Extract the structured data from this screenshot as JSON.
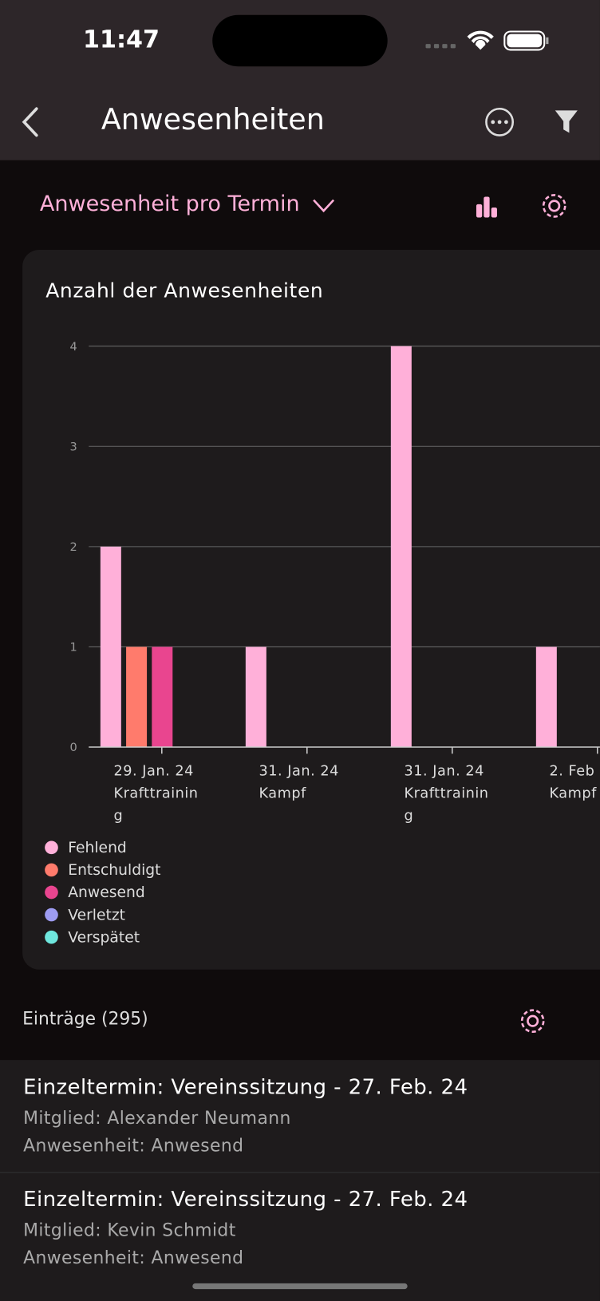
{
  "status_bar": {
    "time": "11:47"
  },
  "nav": {
    "title": "Anwesenheiten"
  },
  "toolbar": {
    "selector": "Anwesenheit pro Termin"
  },
  "chart_data": {
    "type": "bar",
    "title": "Anzahl der Anwesenheiten",
    "categories": [
      "29. Jan. 24\nKrafttraining",
      "31. Jan. 24\nKampf",
      "31. Jan. 24\nKrafttraining",
      "2. Feb\nKampf"
    ],
    "series": [
      {
        "name": "Fehlend",
        "color": "#ffb0d9",
        "values": [
          2,
          1,
          4,
          1
        ]
      },
      {
        "name": "Entschuldigt",
        "color": "#ff7b6c",
        "values": [
          1,
          0,
          0,
          0
        ]
      },
      {
        "name": "Anwesend",
        "color": "#e9458f",
        "values": [
          1,
          0,
          0,
          0
        ]
      },
      {
        "name": "Verletzt",
        "color": "#9e9cf2",
        "values": [
          0,
          0,
          0,
          0
        ]
      },
      {
        "name": "Verspätet",
        "color": "#6fe7de",
        "values": [
          0,
          0,
          0,
          0
        ]
      }
    ],
    "ylim": [
      0,
      4
    ],
    "yticks": [
      0,
      1,
      2,
      3,
      4
    ],
    "grid": true
  },
  "entries": {
    "header": "Einträge (295)",
    "items": [
      {
        "title": "Einzeltermin: Vereinssitzung - 27. Feb. 24",
        "member": "Mitglied: Alexander Neumann",
        "status": "Anwesenheit: Anwesend"
      },
      {
        "title": "Einzeltermin: Vereinssitzung - 27. Feb. 24",
        "member": "Mitglied: Kevin Schmidt",
        "status": "Anwesenheit: Anwesend"
      }
    ]
  }
}
